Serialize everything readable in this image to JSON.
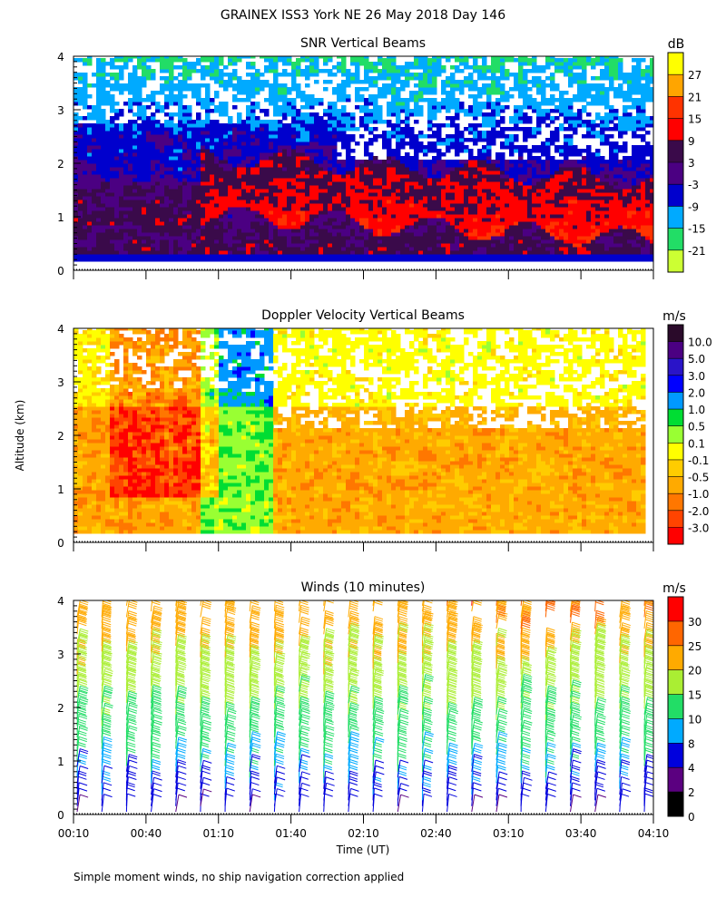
{
  "page": {
    "title": "GRAINEX ISS3 York NE  26 May 2018 Day 146",
    "y_axis_label": "Altitude (km)",
    "x_axis_label": "Time (UT)",
    "footnote": "Simple moment winds, no ship navigation correction applied"
  },
  "chart_data": [
    {
      "type": "heatmap",
      "title": "SNR Vertical Beams",
      "xlabel": "Time (UT)",
      "ylabel": "Altitude (km)",
      "x_ticks": [
        "00:10",
        "00:40",
        "01:10",
        "01:40",
        "02:10",
        "02:40",
        "03:10",
        "03:40",
        "04:10"
      ],
      "y_ticks": [
        "0",
        "1",
        "2",
        "3",
        "4"
      ],
      "ylim": [
        0,
        4
      ],
      "colorbar": {
        "unit": "dB",
        "labels": [
          "27",
          "21",
          "15",
          "9",
          "3",
          "-3",
          "-9",
          "-15",
          "-21"
        ],
        "colors": [
          "#ffff00",
          "#ffa500",
          "#ff3300",
          "#ff0000",
          "#3a0a4a",
          "#4b0082",
          "#0000cd",
          "#00aaff",
          "#22dd66",
          "#ccff33"
        ]
      }
    },
    {
      "type": "heatmap",
      "title": "Doppler Velocity Vertical Beams",
      "xlabel": "Time (UT)",
      "ylabel": "Altitude (km)",
      "x_ticks": [
        "00:10",
        "00:40",
        "01:10",
        "01:40",
        "02:10",
        "02:40",
        "03:10",
        "03:40",
        "04:10"
      ],
      "y_ticks": [
        "0",
        "1",
        "2",
        "3",
        "4"
      ],
      "ylim": [
        0,
        4
      ],
      "colorbar": {
        "unit": "m/s",
        "labels": [
          "10.0",
          "5.0",
          "3.0",
          "2.0",
          "1.0",
          "0.5",
          "0.1",
          "-0.1",
          "-0.5",
          "-1.0",
          "-2.0",
          "-3.0"
        ],
        "colors": [
          "#2a0a2a",
          "#4b0082",
          "#2a14c8",
          "#0000ff",
          "#0099ff",
          "#00dd33",
          "#99ff33",
          "#ffff00",
          "#ffcc00",
          "#ffaa00",
          "#ff7700",
          "#ff4400",
          "#ff0000"
        ]
      }
    },
    {
      "type": "scatter",
      "title": "Winds (10 minutes)",
      "xlabel": "Time (UT)",
      "ylabel": "Altitude (km)",
      "x_ticks": [
        "00:10",
        "00:40",
        "01:10",
        "01:40",
        "02:10",
        "02:40",
        "03:10",
        "03:40",
        "04:10"
      ],
      "y_ticks": [
        "0",
        "1",
        "2",
        "3",
        "4"
      ],
      "ylim": [
        0,
        4
      ],
      "colorbar": {
        "unit": "m/s",
        "labels": [
          "30",
          "25",
          "20",
          "15",
          "10",
          "8",
          "4",
          "2",
          "0"
        ],
        "colors": [
          "#ff0000",
          "#ff6600",
          "#ffaa00",
          "#aaee33",
          "#22dd66",
          "#00aaff",
          "#0000dd",
          "#5b0080",
          "#000000"
        ]
      }
    }
  ]
}
